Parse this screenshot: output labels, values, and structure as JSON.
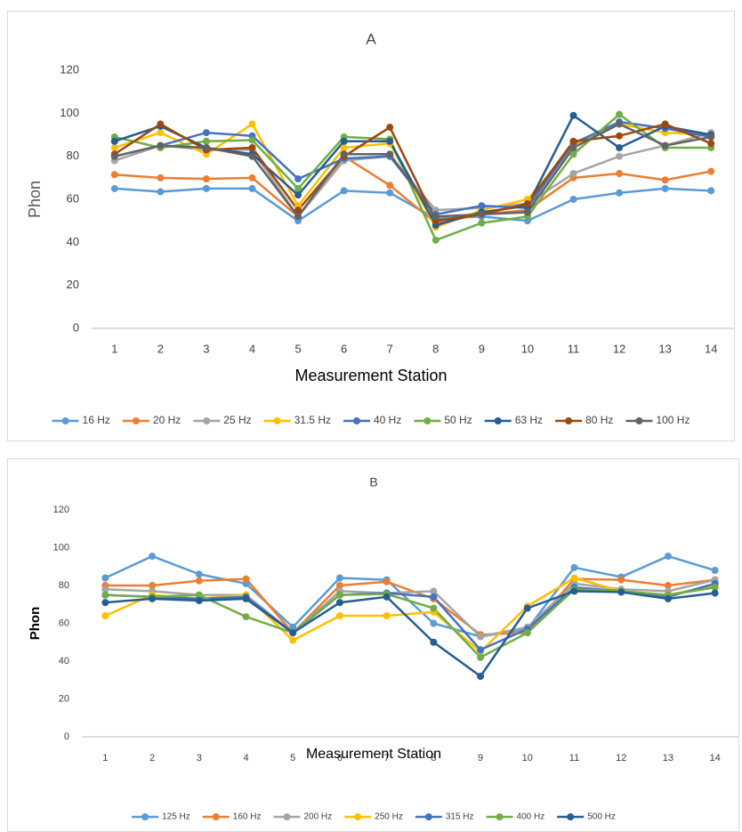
{
  "chart_data": [
    {
      "type": "line",
      "title": "A",
      "y_label": "Phon",
      "x_label": "Measurement Station",
      "categories": [
        "1",
        "2",
        "3",
        "4",
        "5",
        "6",
        "7",
        "8",
        "9",
        "10",
        "11",
        "12",
        "13",
        "14"
      ],
      "ylim": [
        0,
        120
      ],
      "yticks": [
        0,
        20,
        40,
        60,
        80,
        100,
        120
      ],
      "grid": false,
      "legend": "bottom",
      "series": [
        {
          "name": "16 Hz",
          "color": "#5b9bd5",
          "values": [
            65,
            63.5,
            65,
            65,
            50,
            64,
            63,
            51,
            52,
            50,
            60,
            63,
            65,
            64
          ]
        },
        {
          "name": "20 Hz",
          "color": "#ed7d31",
          "values": [
            71.5,
            70,
            69.5,
            70,
            52,
            80,
            66.5,
            49,
            53,
            55,
            70,
            72,
            69,
            73
          ]
        },
        {
          "name": "25 Hz",
          "color": "#a5a5a5",
          "values": [
            78,
            85,
            83,
            83,
            52,
            78,
            80,
            55,
            56,
            58,
            72,
            80,
            85,
            91
          ]
        },
        {
          "name": "31.5 Hz",
          "color": "#ffc000",
          "values": [
            84,
            91,
            81,
            95,
            57,
            84,
            86,
            47,
            55,
            60,
            85,
            95,
            91,
            90
          ]
        },
        {
          "name": "40 Hz",
          "color": "#4472c4",
          "values": [
            80,
            85,
            91,
            89.5,
            69.5,
            79,
            80,
            53,
            57,
            56,
            86,
            96,
            93,
            89
          ]
        },
        {
          "name": "50 Hz",
          "color": "#70ad47",
          "values": [
            89,
            84,
            87,
            87.5,
            65,
            89,
            88,
            41,
            49,
            52,
            81,
            99.5,
            84,
            84
          ]
        },
        {
          "name": "63 Hz",
          "color": "#255e91",
          "values": [
            87,
            94,
            84,
            81,
            62,
            87,
            87,
            48,
            54,
            57,
            99,
            84,
            94,
            90
          ]
        },
        {
          "name": "80 Hz",
          "color": "#9e480e",
          "values": [
            81,
            95,
            83,
            84,
            55,
            80,
            93.5,
            50,
            53,
            58,
            87,
            89.5,
            95,
            86
          ]
        },
        {
          "name": "100 Hz",
          "color": "#636363",
          "values": [
            80,
            85,
            84,
            80,
            52,
            81,
            81,
            52,
            53,
            54,
            84,
            95,
            85,
            89
          ]
        }
      ]
    },
    {
      "type": "line",
      "title": "B",
      "y_label": "Phon",
      "x_label": "Measurement Station",
      "categories": [
        "1",
        "2",
        "3",
        "4",
        "5",
        "6",
        "7",
        "8",
        "9",
        "10",
        "11",
        "12",
        "13",
        "14"
      ],
      "ylim": [
        0,
        120
      ],
      "yticks": [
        0,
        20,
        40,
        60,
        80,
        100,
        120
      ],
      "grid": false,
      "legend": "bottom",
      "series": [
        {
          "name": "125 Hz",
          "color": "#5b9bd5",
          "values": [
            84,
            95.5,
            86,
            81,
            58,
            84,
            83,
            60,
            53,
            57,
            89.5,
            84.5,
            95.5,
            88
          ]
        },
        {
          "name": "160 Hz",
          "color": "#ed7d31",
          "values": [
            80,
            80,
            82.5,
            83.5,
            55,
            80,
            82,
            73,
            54,
            55,
            83.5,
            83,
            80,
            83
          ]
        },
        {
          "name": "200 Hz",
          "color": "#a5a5a5",
          "values": [
            78,
            77,
            75,
            75,
            55,
            77,
            76,
            77,
            53,
            58,
            81,
            78,
            77,
            83
          ]
        },
        {
          "name": "250 Hz",
          "color": "#ffc000",
          "values": [
            64,
            75,
            73,
            75,
            51,
            64,
            64,
            66,
            45,
            69,
            84,
            77,
            75,
            80
          ]
        },
        {
          "name": "315 Hz",
          "color": "#4472c4",
          "values": [
            75,
            74,
            73,
            74,
            55,
            75,
            76,
            74,
            46,
            57,
            79,
            77,
            74,
            81
          ]
        },
        {
          "name": "400 Hz",
          "color": "#70ad47",
          "values": [
            75,
            74,
            75,
            63.5,
            55,
            75,
            75.5,
            68,
            42,
            55,
            78,
            77,
            75,
            79
          ]
        },
        {
          "name": "500 Hz",
          "color": "#255e91",
          "values": [
            71,
            73,
            72,
            73,
            55,
            71,
            74,
            50,
            32,
            68,
            77,
            76.5,
            73,
            76
          ]
        }
      ]
    }
  ]
}
